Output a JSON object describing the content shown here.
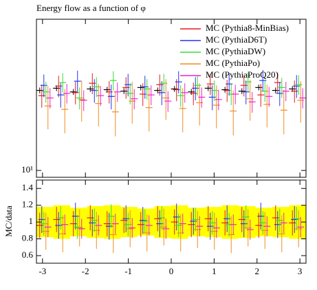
{
  "chart_data": [
    {
      "type": "errorbar",
      "title": "Energy flow as a function of φ",
      "log_y": true,
      "xlim": [
        -3.1416,
        3.1416
      ],
      "xticks": [
        -3,
        -2,
        -1,
        0,
        1,
        2,
        3
      ],
      "ylim": [
        9.5,
        31
      ],
      "yticks": [
        {
          "value": 10,
          "label": "10¹"
        }
      ],
      "legend": "top-right",
      "x": [
        -2.945,
        -2.553,
        -2.16,
        -1.767,
        -1.374,
        -0.982,
        -0.589,
        -0.196,
        0.196,
        0.589,
        0.982,
        1.374,
        1.767,
        2.16,
        2.553,
        2.945
      ],
      "series": [
        {
          "color": "#000000",
          "error": 0.4,
          "values": [
            18.2,
            18.5,
            18.0,
            18.4,
            18.3,
            18.1,
            18.6,
            18.2,
            18.4,
            18.0,
            18.5,
            18.3,
            18.1,
            18.6,
            18.2,
            18.4
          ]
        },
        {
          "name": "MC (Pythia8-MinBias)",
          "color": "#e41a1c",
          "error": 1.5,
          "values": [
            17.5,
            18.8,
            17.9,
            19.2,
            18.0,
            18.6,
            17.7,
            19.0,
            18.3,
            17.8,
            19.1,
            18.2,
            18.9,
            17.6,
            19.3,
            18.1
          ]
        },
        {
          "name": "MC (PythiaD6T)",
          "color": "#2233ee",
          "error": 1.6,
          "values": [
            18.9,
            17.6,
            19.5,
            18.2,
            17.4,
            19.0,
            18.7,
            17.9,
            19.4,
            18.5,
            17.3,
            19.1,
            18.0,
            19.6,
            17.8,
            18.8
          ]
        },
        {
          "name": "MC (PythiaDW)",
          "color": "#33dd33",
          "error": 1.4,
          "values": [
            18.0,
            19.3,
            17.2,
            18.7,
            19.6,
            17.8,
            18.4,
            19.2,
            17.5,
            18.9,
            18.2,
            17.7,
            19.4,
            18.1,
            18.6,
            19.0
          ]
        },
        {
          "name": "MC (PythiaPo)",
          "color": "#f08c1e",
          "error": 2.6,
          "values": [
            16.2,
            15.8,
            17.0,
            16.5,
            15.5,
            16.8,
            16.0,
            17.2,
            15.9,
            16.6,
            16.3,
            15.6,
            17.1,
            16.4,
            15.7,
            16.9
          ]
        },
        {
          "name": "MC (PythiaProQ20)",
          "color": "#ee22cc",
          "error": 1.3,
          "values": [
            17.2,
            17.8,
            16.9,
            17.5,
            18.0,
            17.1,
            17.6,
            16.8,
            17.9,
            17.3,
            17.0,
            17.7,
            16.7,
            17.4,
            18.1,
            17.2
          ]
        }
      ]
    },
    {
      "type": "ratio",
      "ylabel": "MC/data",
      "xlim": [
        -3.1416,
        3.1416
      ],
      "xticks": [
        -3,
        -2,
        -1,
        0,
        1,
        2,
        3
      ],
      "ylim": [
        0.51,
        1.5
      ],
      "yticks": [
        0.6,
        0.8,
        1,
        1.2,
        1.4
      ],
      "x": [
        -2.945,
        -2.553,
        -2.16,
        -1.767,
        -1.374,
        -0.982,
        -0.589,
        -0.196,
        0.196,
        0.589,
        0.982,
        1.374,
        1.767,
        2.16,
        2.553,
        2.945
      ],
      "band": {
        "color": "#ffff00",
        "lower": [
          0.82,
          0.8,
          0.83,
          0.81,
          0.8,
          0.82,
          0.84,
          0.81,
          0.8,
          0.83,
          0.82,
          0.8,
          0.81,
          0.83,
          0.82,
          0.8
        ],
        "upper": [
          1.18,
          1.2,
          1.17,
          1.19,
          1.2,
          1.18,
          1.16,
          1.19,
          1.2,
          1.17,
          1.18,
          1.2,
          1.19,
          1.17,
          1.18,
          1.2
        ]
      },
      "series": [
        {
          "color": "#e41a1c",
          "error": 0.15,
          "values": [
            0.96,
            1.03,
            0.98,
            1.05,
            0.98,
            1.02,
            0.97,
            1.04,
            1.0,
            0.97,
            1.04,
            0.99,
            1.03,
            0.96,
            1.05,
            0.99
          ]
        },
        {
          "color": "#2233ee",
          "error": 0.16,
          "values": [
            1.03,
            0.96,
            1.07,
            0.99,
            0.95,
            1.04,
            1.02,
            0.98,
            1.06,
            1.01,
            0.95,
            1.04,
            0.98,
            1.07,
            0.97,
            1.03
          ]
        },
        {
          "color": "#33dd33",
          "error": 0.14,
          "values": [
            0.98,
            1.05,
            0.94,
            1.02,
            1.07,
            0.97,
            1.01,
            1.05,
            0.96,
            1.03,
            0.99,
            0.97,
            1.06,
            0.99,
            1.02,
            1.04
          ]
        },
        {
          "color": "#f08c1e",
          "error": 0.22,
          "values": [
            0.89,
            0.86,
            0.93,
            0.9,
            0.85,
            0.92,
            0.87,
            0.94,
            0.87,
            0.91,
            0.89,
            0.85,
            0.93,
            0.9,
            0.86,
            0.92
          ]
        },
        {
          "color": "#ee22cc",
          "error": 0.12,
          "values": [
            0.94,
            0.97,
            0.92,
            0.96,
            0.98,
            0.93,
            0.96,
            0.92,
            0.98,
            0.95,
            0.93,
            0.97,
            0.91,
            0.95,
            0.99,
            0.94
          ]
        }
      ]
    }
  ]
}
